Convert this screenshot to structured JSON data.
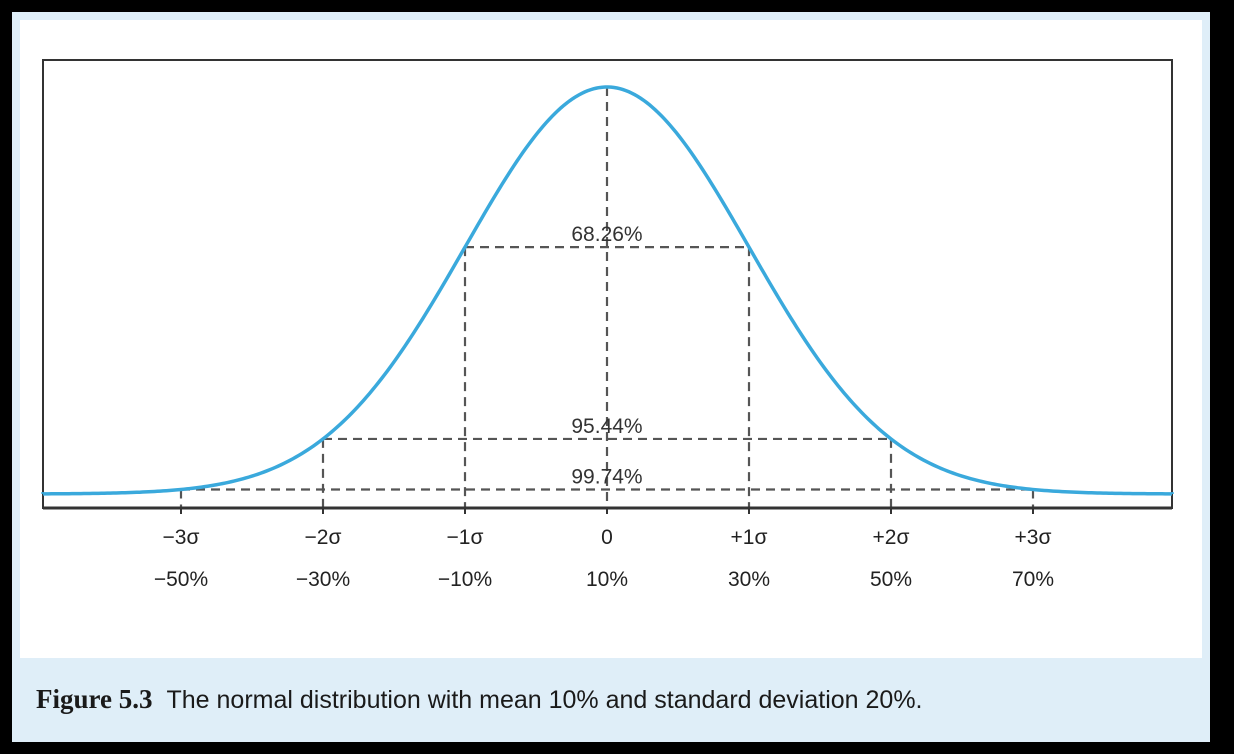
{
  "chart_data": {
    "type": "line",
    "title": "",
    "distribution": "normal",
    "mean": 10,
    "std_dev": 20,
    "x_units": "%",
    "sigma_ticks": [
      "−3σ",
      "−2σ",
      "−1σ",
      "0",
      "+1σ",
      "+2σ",
      "+3σ"
    ],
    "value_ticks": [
      "−50%",
      "−30%",
      "−10%",
      "10%",
      "30%",
      "50%",
      "70%"
    ],
    "tick_values": [
      -50,
      -30,
      -10,
      10,
      30,
      50,
      70
    ],
    "intervals": [
      {
        "label": "68.26%",
        "from": -10,
        "to": 30
      },
      {
        "label": "95.44%",
        "from": -30,
        "to": 50
      },
      {
        "label": "99.74%",
        "from": -50,
        "to": 70
      }
    ],
    "xlim": [
      -72,
      94
    ],
    "colors": {
      "curve": "#3aa9dc",
      "dashes": "#555555",
      "frame": "#333333"
    }
  },
  "caption": {
    "label": "Figure 5.3",
    "text": "The normal distribution with mean 10% and standard deviation 20%."
  }
}
